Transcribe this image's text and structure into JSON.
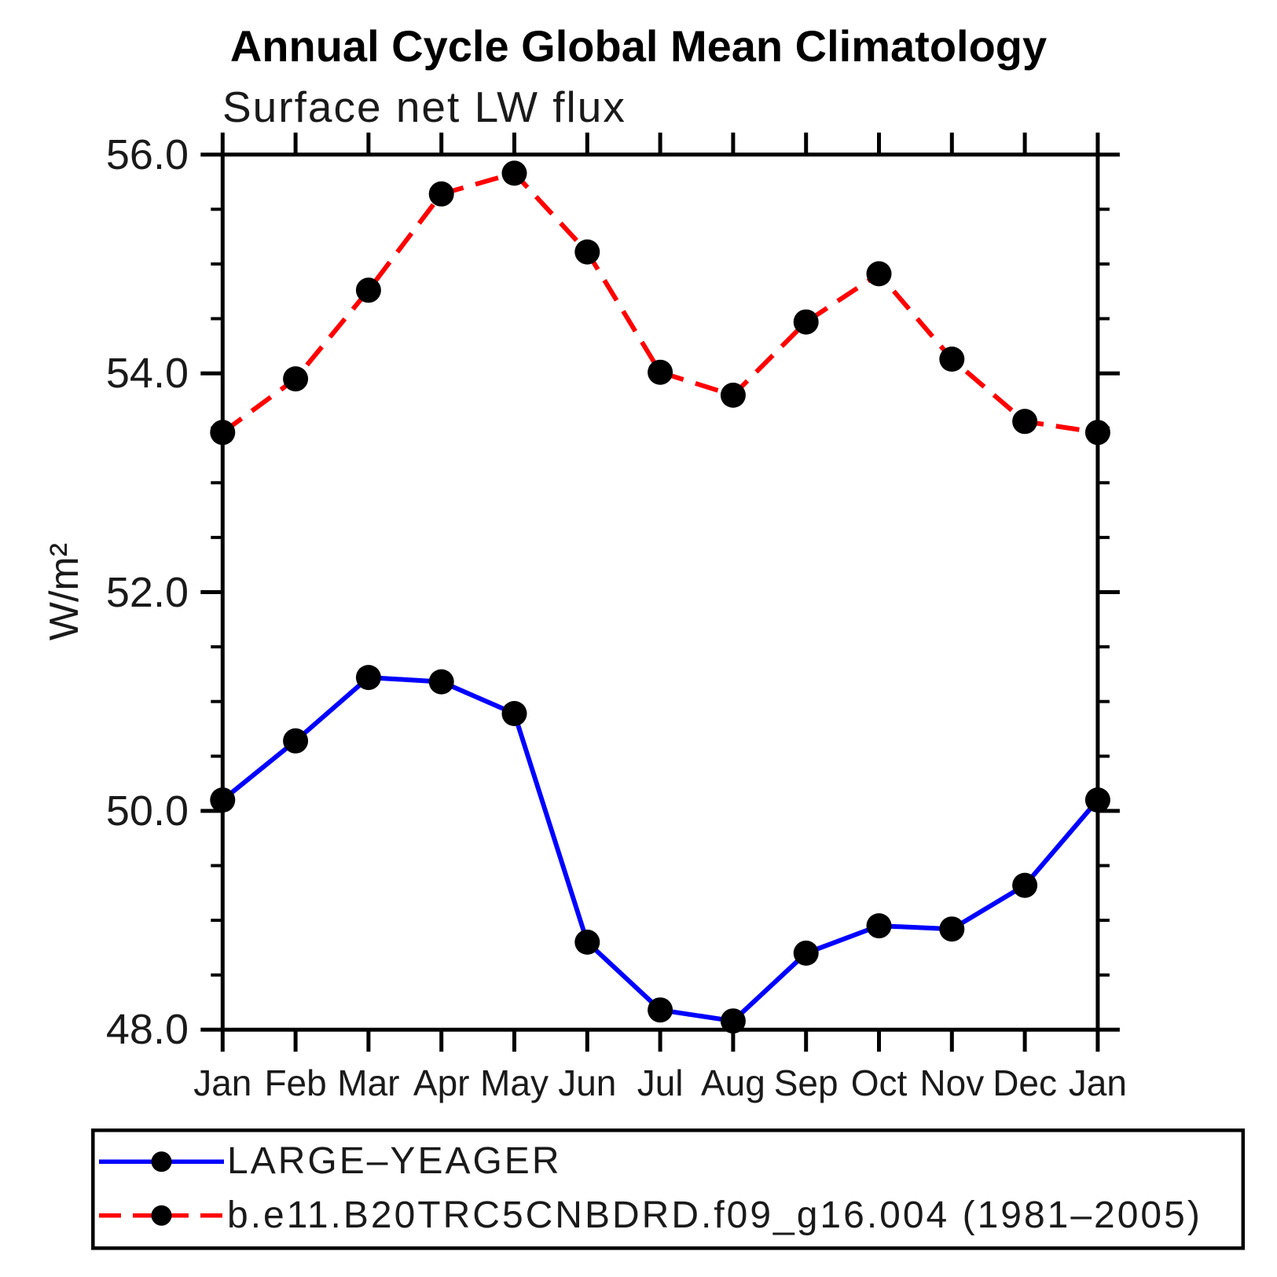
{
  "title": "Annual Cycle Global Mean Climatology",
  "subtitle": "Surface net LW flux",
  "y_axis_label": "W/m²",
  "colors": {
    "observation_line": "#0000ff",
    "model_line": "#ff0000",
    "marker": "#000000",
    "axis": "#000000"
  },
  "chart_data": {
    "type": "line",
    "title": "Annual Cycle Global Mean Climatology",
    "subtitle": "Surface net LW flux",
    "xlabel": "",
    "ylabel": "W/m²",
    "x_categories": [
      "Jan",
      "Feb",
      "Mar",
      "Apr",
      "May",
      "Jun",
      "Jul",
      "Aug",
      "Sep",
      "Oct",
      "Nov",
      "Dec",
      "Jan"
    ],
    "ylim": [
      48.0,
      56.0
    ],
    "y_major_tick_interval": 2.0,
    "y_minor_tick_interval": 0.5,
    "y_tick_labels": [
      "56.0",
      "54.0",
      "52.0",
      "50.0",
      "48.0"
    ],
    "grid": false,
    "legend_position": "bottom-left",
    "series": [
      {
        "name": "LARGE–YEAGER",
        "color": "#0000ff",
        "line_style": "solid",
        "marker": "filled-circle",
        "marker_color": "#000000",
        "values": [
          50.1,
          50.64,
          51.22,
          51.18,
          50.89,
          48.8,
          48.18,
          48.08,
          48.7,
          48.95,
          48.92,
          49.32,
          50.1
        ]
      },
      {
        "name": "b.e11.B20TRC5CNBDRD.f09_g16.004 (1981–2005)",
        "color": "#ff0000",
        "line_style": "dashed",
        "marker": "filled-circle",
        "marker_color": "#000000",
        "values": [
          53.46,
          53.95,
          54.76,
          55.64,
          55.83,
          55.11,
          54.01,
          53.8,
          54.47,
          54.91,
          54.13,
          53.56,
          53.46
        ]
      }
    ]
  }
}
